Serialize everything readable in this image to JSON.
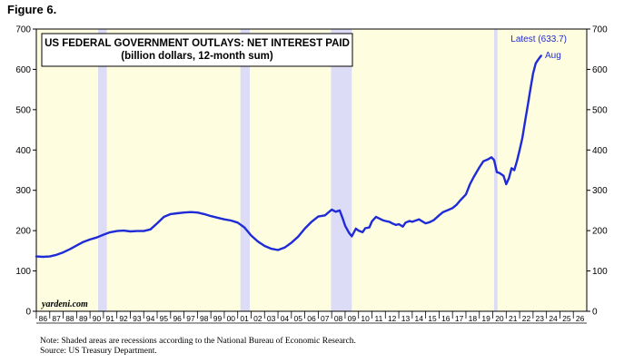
{
  "figure_label": "Figure 6.",
  "notes": {
    "line1": "Note: Shaded areas are recessions according to the National Bureau of Economic Research.",
    "line2": "Source: US Treasury Department."
  },
  "colors": {
    "plot_background": "#fffde0",
    "recession_band": "#dcdcf6",
    "series_line": "#1f2bd6",
    "latest_text": "#1f2bd6"
  },
  "chart_data": {
    "type": "line",
    "title": "US FEDERAL GOVERNMENT OUTLAYS: NET INTEREST PAID",
    "subtitle": "(billion dollars, 12-month sum)",
    "watermark": "yardeni.com",
    "latest_label": "Latest (633.7)",
    "latest_month": "Aug",
    "xlim": [
      1986,
      2027
    ],
    "ylim": [
      0,
      700
    ],
    "y_ticks": [
      0,
      100,
      200,
      300,
      400,
      500,
      600,
      700
    ],
    "x_tick_labels": [
      "86",
      "87",
      "88",
      "89",
      "90",
      "91",
      "92",
      "93",
      "94",
      "95",
      "96",
      "97",
      "98",
      "99",
      "00",
      "01",
      "02",
      "03",
      "04",
      "05",
      "06",
      "07",
      "08",
      "09",
      "10",
      "11",
      "12",
      "13",
      "14",
      "15",
      "16",
      "17",
      "18",
      "19",
      "20",
      "21",
      "22",
      "23",
      "24",
      "25",
      "26"
    ],
    "recessions": [
      [
        1990.6,
        1991.25
      ],
      [
        2001.2,
        2001.9
      ],
      [
        2007.95,
        2009.5
      ],
      [
        2020.1,
        2020.35
      ]
    ],
    "series": [
      {
        "x": [
          1986.0,
          1986.5,
          1987.0,
          1987.5,
          1988.0,
          1988.5,
          1989.0,
          1989.5,
          1990.0,
          1990.5,
          1991.0,
          1991.5,
          1992.0,
          1992.5,
          1993.0,
          1993.5,
          1994.0,
          1994.5,
          1995.0,
          1995.5,
          1996.0,
          1996.5,
          1997.0,
          1997.5,
          1998.0,
          1998.5,
          1999.0,
          1999.5,
          2000.0,
          2000.5,
          2001.0,
          2001.5,
          2002.0,
          2002.5,
          2003.0,
          2003.5,
          2004.0,
          2004.5,
          2005.0,
          2005.5,
          2006.0,
          2006.5,
          2007.0,
          2007.5,
          2008.0,
          2008.3,
          2008.6,
          2008.8,
          2009.0,
          2009.3,
          2009.5,
          2009.8,
          2010.0,
          2010.3,
          2010.5,
          2010.8,
          2011.0,
          2011.3,
          2011.5,
          2011.8,
          2012.0,
          2012.3,
          2012.5,
          2012.8,
          2013.0,
          2013.3,
          2013.5,
          2013.8,
          2014.0,
          2014.5,
          2015.0,
          2015.3,
          2015.6,
          2016.0,
          2016.3,
          2016.6,
          2017.0,
          2017.3,
          2017.6,
          2018.0,
          2018.3,
          2018.6,
          2019.0,
          2019.3,
          2019.6,
          2019.9,
          2020.1,
          2020.3,
          2020.5,
          2020.8,
          2021.0,
          2021.2,
          2021.4,
          2021.6,
          2021.8,
          2022.0,
          2022.2,
          2022.4,
          2022.6,
          2022.8,
          2023.0,
          2023.2,
          2023.4,
          2023.6
        ],
        "y": [
          136,
          135,
          136,
          140,
          146,
          154,
          163,
          172,
          178,
          183,
          190,
          196,
          199,
          200,
          198,
          199,
          199,
          203,
          218,
          234,
          241,
          243,
          245,
          246,
          245,
          241,
          236,
          232,
          228,
          225,
          220,
          208,
          188,
          173,
          162,
          155,
          152,
          158,
          170,
          185,
          205,
          222,
          235,
          238,
          252,
          247,
          250,
          232,
          212,
          194,
          186,
          205,
          200,
          196,
          206,
          208,
          223,
          234,
          231,
          226,
          224,
          222,
          218,
          214,
          216,
          210,
          220,
          224,
          222,
          228,
          218,
          221,
          226,
          238,
          246,
          250,
          256,
          264,
          276,
          290,
          315,
          334,
          357,
          372,
          376,
          382,
          375,
          345,
          343,
          336,
          315,
          330,
          355,
          350,
          372,
          400,
          430,
          470,
          510,
          550,
          590,
          615,
          625,
          633.7
        ]
      }
    ]
  }
}
